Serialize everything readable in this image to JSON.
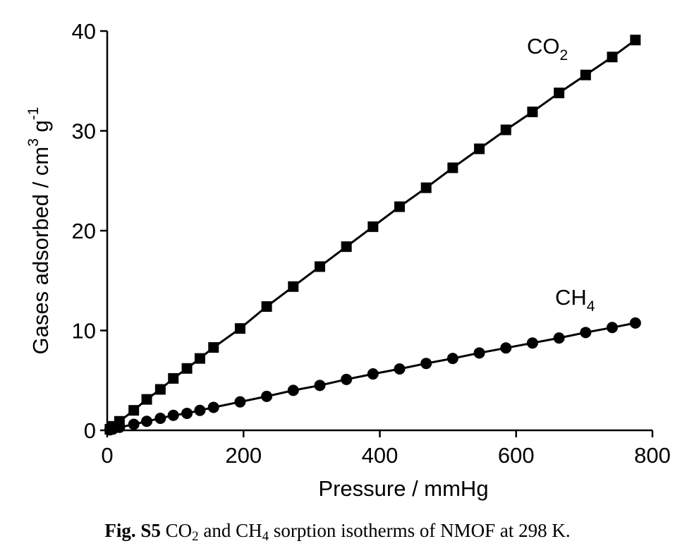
{
  "chart_data": {
    "type": "line",
    "xlabel": "Pressure / mmHg",
    "ylabel": {
      "base": "Gases adsorbed / cm",
      "sup1": "3",
      "mid": " g",
      "sup2": "-1"
    },
    "xlim": [
      0,
      800
    ],
    "ylim": [
      0,
      40
    ],
    "xticks": [
      0,
      200,
      400,
      600,
      800
    ],
    "yticks": [
      0,
      10,
      20,
      30,
      40
    ],
    "grid": false,
    "series": [
      {
        "name": "CO2",
        "label_main": "CO",
        "label_sub": "2",
        "marker": "square",
        "x": [
          4,
          9,
          18,
          39,
          58,
          78,
          97,
          117,
          136,
          156,
          195,
          234,
          273,
          312,
          351,
          390,
          429,
          468,
          507,
          546,
          585,
          624,
          663,
          702,
          741,
          775
        ],
        "y": [
          0.1,
          0.4,
          0.9,
          2.0,
          3.1,
          4.1,
          5.2,
          6.2,
          7.2,
          8.3,
          10.2,
          12.4,
          14.4,
          16.4,
          18.4,
          20.4,
          22.4,
          24.3,
          26.3,
          28.2,
          30.1,
          31.9,
          33.8,
          35.6,
          37.4,
          39.1
        ]
      },
      {
        "name": "CH4",
        "label_main": "CH",
        "label_sub": "4",
        "marker": "circle",
        "x": [
          4,
          9,
          18,
          39,
          58,
          78,
          97,
          117,
          136,
          156,
          195,
          234,
          273,
          312,
          351,
          390,
          429,
          468,
          507,
          546,
          585,
          624,
          663,
          702,
          741,
          775
        ],
        "y": [
          0.05,
          0.15,
          0.3,
          0.6,
          0.9,
          1.2,
          1.5,
          1.7,
          2.0,
          2.3,
          2.85,
          3.4,
          4.0,
          4.5,
          5.1,
          5.65,
          6.15,
          6.7,
          7.2,
          7.75,
          8.25,
          8.75,
          9.25,
          9.8,
          10.3,
          10.75
        ]
      }
    ]
  },
  "caption": {
    "bold": "Fig. S5",
    "part1": " CO",
    "sub1": "2",
    "part2": " and CH",
    "sub2": "4",
    "part3": " sorption isotherms of NMOF at 298 K."
  }
}
